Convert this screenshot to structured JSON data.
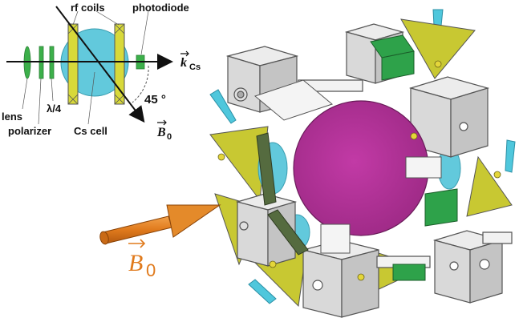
{
  "schematic": {
    "labels": {
      "rf_coils": "rf coils",
      "photodiode": "photodiode",
      "k_symbol": "k",
      "k_sub": "Cs",
      "angle": "45 °",
      "b0_symbol": "B",
      "b0_sub": "0",
      "lens": "lens",
      "polarizer": "polarizer",
      "lambda4": "λ/4",
      "cs_cell": "Cs cell"
    }
  },
  "apparatus": {
    "field_arrow_symbol": "B",
    "field_arrow_sub": "0"
  },
  "colors": {
    "cell_cyan": "#62c9dc",
    "coil_yellow": "#d8d93a",
    "lens_green": "#3cb04a",
    "field_orange": "#e07a1c",
    "magenta_disc": "#b5319a",
    "frame_gray": "#d8d8d8",
    "dark_olive": "#556b3f"
  }
}
